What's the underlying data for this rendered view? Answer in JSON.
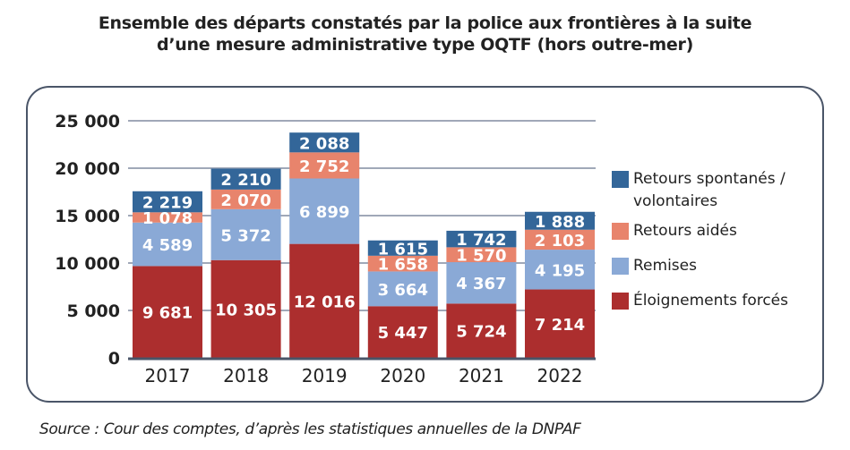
{
  "chart_data": {
    "type": "bar",
    "stacked": true,
    "title": "Ensemble des départs constatés par la police aux frontières à la suite d’une mesure administrative type OQTF (hors outre-mer)",
    "title_lines": [
      "Ensemble des départs constatés par la police aux frontières à la suite",
      "d’une mesure administrative type OQTF (hors outre-mer)"
    ],
    "xlabel": "",
    "ylabel": "",
    "categories": [
      "2017",
      "2018",
      "2019",
      "2020",
      "2021",
      "2022"
    ],
    "ylim": [
      0,
      25000
    ],
    "yticks": [
      0,
      5000,
      10000,
      15000,
      20000,
      25000
    ],
    "ytick_labels": [
      "0",
      "5 000",
      "10 000",
      "15 000",
      "20 000",
      "25 000"
    ],
    "grid": true,
    "legend_position": "right",
    "series": [
      {
        "name": "Éloignements forcés",
        "color": "#ac2e2e",
        "values": [
          9681,
          10305,
          12016,
          5447,
          5724,
          7214
        ],
        "labels": [
          "9 681",
          "10 305",
          "12 016",
          "5 447",
          "5 724",
          "7 214"
        ]
      },
      {
        "name": "Remises",
        "color": "#8aa9d6",
        "values": [
          4589,
          5372,
          6899,
          3664,
          4367,
          4195
        ],
        "labels": [
          "4 589",
          "5 372",
          "6 899",
          "3 664",
          "4 367",
          "4 195"
        ]
      },
      {
        "name": "Retours aidés",
        "color": "#e8846c",
        "values": [
          1078,
          2070,
          2752,
          1658,
          1570,
          2103
        ],
        "labels": [
          "1 078",
          "2 070",
          "2 752",
          "1 658",
          "1 570",
          "2 103"
        ]
      },
      {
        "name": "Retours spontanés / volontaires",
        "color": "#336699",
        "values": [
          2219,
          2210,
          2088,
          1615,
          1742,
          1888
        ],
        "labels": [
          "2 219",
          "2 210",
          "2 088",
          "1 615",
          "1 742",
          "1 888"
        ]
      }
    ],
    "legend": [
      {
        "label": "Retours spontanés / volontaires",
        "color": "#336699"
      },
      {
        "label": "Retours aidés",
        "color": "#e8846c"
      },
      {
        "label": "Remises",
        "color": "#8aa9d6"
      },
      {
        "label": "Éloignements forcés",
        "color": "#ac2e2e"
      }
    ],
    "source": "Source : Cour des comptes, d’après les statistiques annuelles de la DNPAF"
  }
}
